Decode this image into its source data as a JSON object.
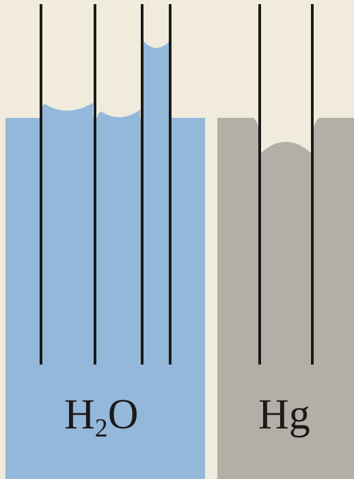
{
  "labels": {
    "water": {
      "main": "H",
      "subscript": "2",
      "suffix": "O"
    },
    "mercury": "Hg"
  },
  "colors": {
    "background": "#f0ebdc",
    "water": "#94b8d9",
    "mercury": "#b3aea6",
    "tube": "#1a1a1a"
  }
}
